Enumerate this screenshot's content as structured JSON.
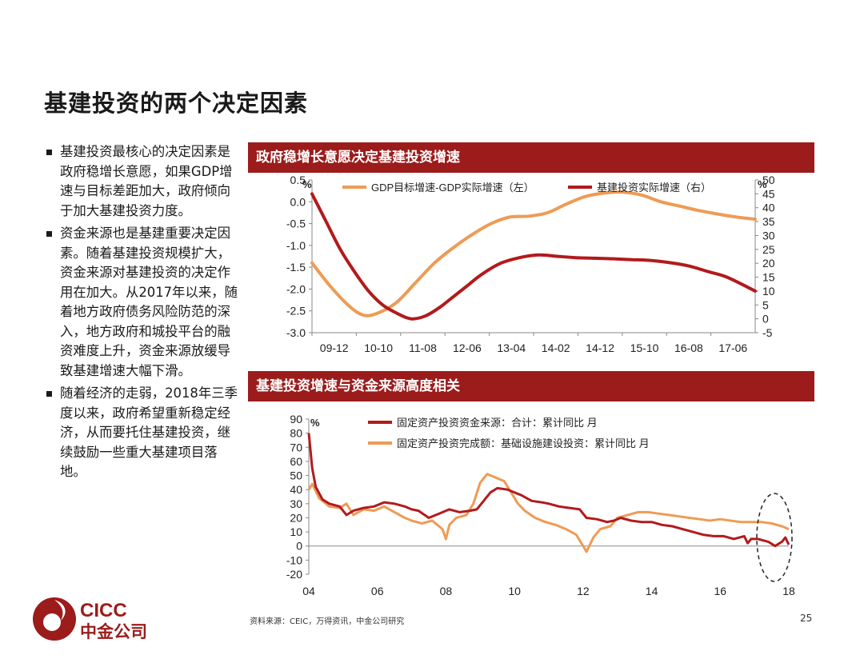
{
  "slide": {
    "title": "基建投资的两个决定因素",
    "bullets": [
      "基建投资最核心的决定因素是政府稳增长意愿，如果GDP增速与目标差距加大，政府倾向于加大基建投资力度。",
      "资金来源也是基建重要决定因素。随着基建投资规模扩大，资金来源对基建投资的决定作用在加大。从2017年以来，随着地方政府债务风险防范的深入，地方政府和城投平台的融资难度上升，资金来源放缓导致基建增速大幅下滑。",
      "随着经济的走弱，2018年三季度以来，政府希望重新稳定经济，从而要托住基建投资，继续鼓励一些重大基建项目落地。"
    ],
    "source": "资料来源：CEIC，万得资讯，中金公司研究",
    "page_number": "25",
    "logo": {
      "en": "CICC",
      "cn": "中金公司"
    },
    "colors": {
      "brand_red": "#9b1c1b",
      "series_red": "#b21a1c",
      "series_orange": "#ee9b55"
    }
  },
  "chart_data": [
    {
      "type": "line",
      "title": "政府稳增长意愿决定基建投资增速",
      "x_ticks": [
        "09-12",
        "10-10",
        "11-08",
        "12-06",
        "13-04",
        "14-02",
        "14-12",
        "15-10",
        "16-08",
        "17-06"
      ],
      "x_range": [
        0,
        94
      ],
      "y_left": {
        "unit": "%",
        "ticks": [
          "0.5",
          "0.0",
          "-0.5",
          "-1.0",
          "-1.5",
          "-2.0",
          "-2.5",
          "-3.0"
        ],
        "range": [
          -3.0,
          0.5
        ]
      },
      "y_right": {
        "unit": "%",
        "ticks": [
          "50",
          "45",
          "40",
          "35",
          "30",
          "25",
          "20",
          "15",
          "10",
          "5",
          "0",
          "-5"
        ],
        "range": [
          -5,
          50
        ]
      },
      "legend": "top",
      "series": [
        {
          "name": "GDP目标增速-GDP实际增速（左）",
          "axis": "left",
          "color": "#ee9b55",
          "x": [
            0,
            4,
            8,
            11,
            14,
            18,
            22,
            26,
            30,
            34,
            38,
            42,
            46,
            50,
            54,
            58,
            62,
            66,
            70,
            74,
            78,
            82,
            86,
            90,
            94
          ],
          "y": [
            -1.4,
            -1.95,
            -2.4,
            -2.6,
            -2.55,
            -2.3,
            -1.85,
            -1.4,
            -1.05,
            -0.75,
            -0.5,
            -0.35,
            -0.33,
            -0.25,
            -0.05,
            0.12,
            0.2,
            0.22,
            0.15,
            0.0,
            -0.1,
            -0.2,
            -0.28,
            -0.35,
            -0.4
          ]
        },
        {
          "name": "基建投资实际增速（右）",
          "axis": "right",
          "color": "#b21a1c",
          "x": [
            0,
            3,
            6,
            9,
            12,
            15,
            18,
            21,
            24,
            27,
            30,
            33,
            36,
            40,
            44,
            48,
            52,
            56,
            60,
            64,
            68,
            72,
            76,
            80,
            84,
            88,
            94
          ],
          "y": [
            45,
            35,
            25,
            17,
            10,
            5,
            2,
            0,
            1,
            4,
            8,
            12,
            16,
            20,
            22,
            23,
            22.5,
            22,
            21.8,
            21.6,
            21.3,
            21,
            20.2,
            19,
            17,
            15,
            10
          ]
        }
      ]
    },
    {
      "type": "line",
      "title": "基建投资增速与资金来源高度相关",
      "x_ticks": [
        "04",
        "06",
        "08",
        "10",
        "12",
        "14",
        "16",
        "18"
      ],
      "x_range": [
        2004,
        2018
      ],
      "y": {
        "unit": "%",
        "ticks": [
          "90",
          "80",
          "70",
          "60",
          "50",
          "40",
          "30",
          "20",
          "10",
          "0",
          "-10",
          "-20"
        ],
        "range": [
          -20,
          90
        ]
      },
      "legend": "top",
      "series": [
        {
          "name": "固定资产投资资金来源：合计：累计同比 月",
          "color": "#b21a1c",
          "x": [
            2004.0,
            2004.1,
            2004.2,
            2004.4,
            2004.6,
            2004.9,
            2005.1,
            2005.3,
            2005.6,
            2005.9,
            2006.2,
            2006.5,
            2006.8,
            2007.0,
            2007.2,
            2007.5,
            2007.8,
            2008.1,
            2008.4,
            2008.7,
            2008.9,
            2009.1,
            2009.3,
            2009.5,
            2009.8,
            2010.0,
            2010.2,
            2010.5,
            2010.8,
            2011.0,
            2011.3,
            2011.6,
            2011.9,
            2012.1,
            2012.4,
            2012.7,
            2012.9,
            2013.1,
            2013.4,
            2013.7,
            2014.0,
            2014.3,
            2014.6,
            2014.9,
            2015.2,
            2015.5,
            2015.8,
            2016.1,
            2016.4,
            2016.7,
            2016.8,
            2016.9,
            2017.1,
            2017.4,
            2017.6,
            2017.8,
            2017.9,
            2018.0
          ],
          "y": [
            80,
            55,
            42,
            33,
            30,
            28,
            22,
            25,
            27,
            28,
            31,
            30,
            28,
            26,
            25,
            20,
            23,
            26,
            24,
            25,
            26,
            32,
            38,
            41,
            40,
            38,
            36,
            32,
            31,
            30,
            28,
            27,
            26,
            20,
            19,
            17,
            18,
            20,
            18,
            17,
            17,
            15,
            14,
            12,
            10,
            8,
            7,
            7,
            5,
            7,
            2,
            5,
            5,
            3,
            0,
            3,
            6,
            1
          ]
        },
        {
          "name": "固定资产投资完成额：基础设施建设投资：累计同比 月",
          "color": "#ee9b55",
          "x": [
            2004.0,
            2004.1,
            2004.3,
            2004.6,
            2004.9,
            2005.1,
            2005.3,
            2005.6,
            2005.9,
            2006.2,
            2006.5,
            2006.8,
            2007.0,
            2007.3,
            2007.6,
            2007.9,
            2008.0,
            2008.1,
            2008.3,
            2008.6,
            2008.8,
            2009.0,
            2009.2,
            2009.4,
            2009.7,
            2009.9,
            2010.1,
            2010.3,
            2010.6,
            2010.9,
            2011.2,
            2011.5,
            2011.8,
            2012.0,
            2012.1,
            2012.3,
            2012.5,
            2012.8,
            2013.0,
            2013.3,
            2013.6,
            2013.9,
            2014.2,
            2014.5,
            2014.8,
            2015.1,
            2015.4,
            2015.7,
            2016.0,
            2016.3,
            2016.6,
            2016.9,
            2017.2,
            2017.5,
            2017.8,
            2018.0
          ],
          "y": [
            40,
            44,
            34,
            28,
            27,
            30,
            22,
            26,
            25,
            28,
            24,
            20,
            18,
            16,
            18,
            12,
            5,
            15,
            20,
            22,
            30,
            45,
            51,
            49,
            46,
            38,
            30,
            25,
            20,
            17,
            15,
            12,
            8,
            0,
            -4,
            6,
            12,
            14,
            20,
            22,
            24,
            24,
            23,
            22,
            21,
            20,
            19,
            18,
            19,
            18,
            17,
            17,
            17,
            16,
            14,
            12
          ]
        }
      ]
    }
  ]
}
